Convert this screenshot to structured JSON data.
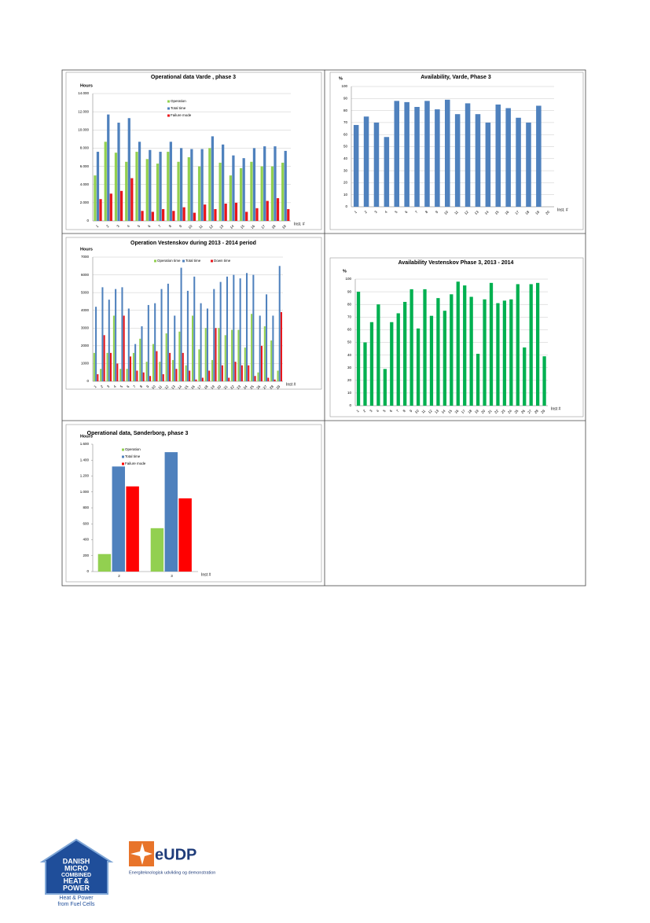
{
  "chart_data": [
    {
      "type": "bar",
      "title": "Operational data Varde , phase 3",
      "y_label": "Hours",
      "x_label": "Inst. #",
      "categories": [
        "1",
        "2",
        "3",
        "4",
        "5",
        "6",
        "7",
        "8",
        "9",
        "10",
        "11",
        "12",
        "13",
        "14",
        "15",
        "16",
        "17",
        "18",
        "19"
      ],
      "series": [
        {
          "name": "Operation",
          "color": "#92d050",
          "values": [
            5000,
            8700,
            7500,
            6500,
            7600,
            6800,
            6300,
            7600,
            6500,
            7000,
            6000,
            8000,
            6400,
            5000,
            5800,
            6500,
            6000,
            6000,
            6400
          ]
        },
        {
          "name": "Total time",
          "color": "#4f81bd",
          "values": [
            7600,
            11700,
            10800,
            11300,
            8700,
            7800,
            7600,
            8700,
            8000,
            7900,
            7900,
            9300,
            8400,
            7200,
            6900,
            8000,
            8200,
            8200,
            7700
          ]
        },
        {
          "name": "Failure mode",
          "color": "#e8161b",
          "values": [
            2400,
            3000,
            3300,
            4700,
            1100,
            1000,
            1300,
            1100,
            1500,
            900,
            1800,
            1300,
            1900,
            2000,
            1000,
            1400,
            2200,
            2500,
            1300
          ]
        }
      ],
      "ylim": [
        0,
        14000
      ],
      "yticks": [
        0,
        {
          "value": 2000,
          "label": "2.000"
        },
        {
          "value": 4000,
          "label": "4.000"
        },
        {
          "value": 6000,
          "label": "6.000"
        },
        {
          "value": 8000,
          "label": "8.000"
        },
        {
          "value": 10000,
          "label": "10.000"
        },
        {
          "value": 12000,
          "label": "12.000"
        },
        {
          "value": 14000,
          "label": "14.000"
        }
      ],
      "grid": true,
      "legend": "vertical"
    },
    {
      "type": "bar",
      "title": "Availability, Varde, Phase 3",
      "y_label": "%",
      "x_label": "Inst. #",
      "categories": [
        "1",
        "2",
        "3",
        "4",
        "5",
        "6",
        "7",
        "8",
        "9",
        "10",
        "11",
        "12",
        "13",
        "14",
        "15",
        "16",
        "17",
        "18",
        "19",
        "20"
      ],
      "series": [
        {
          "name": "Availability",
          "color": "#4f81bd",
          "values": [
            68,
            75,
            70,
            58,
            88,
            87,
            83,
            88,
            81,
            89,
            77,
            86,
            77,
            70,
            85,
            82,
            74,
            70,
            84,
            null
          ]
        }
      ],
      "ylim": [
        0,
        100
      ],
      "yticks": [
        0,
        10,
        20,
        30,
        40,
        50,
        60,
        70,
        80,
        90,
        100
      ],
      "grid": true,
      "legend": "none"
    },
    {
      "type": "bar",
      "title": "Operation   Vestenskov during 2013 - 2014 period",
      "y_label": "Hours",
      "x_label": "Inst #",
      "categories": [
        "1",
        "2",
        "3",
        "4",
        "5",
        "6",
        "7",
        "8",
        "9",
        "10",
        "11",
        "12",
        "13",
        "14",
        "15",
        "16",
        "17",
        "18",
        "19",
        "20",
        "21",
        "22",
        "23",
        "24",
        "25",
        "26",
        "27",
        "28",
        "29"
      ],
      "series": [
        {
          "name": "Operation time",
          "color": "#92d050",
          "values": [
            1600,
            700,
            1600,
            3700,
            700,
            700,
            1600,
            2400,
            1100,
            2100,
            1100,
            2700,
            1200,
            2800,
            900,
            3700,
            1800,
            3000,
            1200,
            3000,
            2600,
            2900,
            2900,
            1900,
            3800,
            500,
            3100,
            2300,
            600
          ]
        },
        {
          "name": "Total time",
          "color": "#4f81bd",
          "values": [
            4200,
            5300,
            4600,
            5200,
            5300,
            4100,
            2100,
            3100,
            4300,
            4400,
            5200,
            5500,
            3700,
            6400,
            5100,
            5900,
            4400,
            4100,
            5200,
            5600,
            5900,
            6000,
            5800,
            6100,
            6000,
            3700,
            4900,
            3700,
            6500
          ]
        },
        {
          "name": "Down time",
          "color": "#e8161b",
          "values": [
            400,
            2600,
            1600,
            1000,
            3700,
            1400,
            600,
            500,
            300,
            1700,
            400,
            1600,
            700,
            1600,
            600,
            100,
            200,
            600,
            3000,
            900,
            200,
            1100,
            900,
            900,
            300,
            2000,
            200,
            100,
            3900
          ]
        }
      ],
      "ylim": [
        0,
        7000
      ],
      "yticks": [
        0,
        1000,
        2000,
        3000,
        4000,
        5000,
        6000,
        7000
      ],
      "grid": true,
      "legend": "horizontal"
    },
    {
      "type": "bar",
      "title": "Availability Vestenskov  Phase 3, 2013 - 2014",
      "y_label": "%",
      "x_label": "Inst #",
      "categories": [
        "1",
        "2",
        "3",
        "4",
        "5",
        "6",
        "7",
        "8",
        "9",
        "10",
        "11",
        "12",
        "13",
        "14",
        "15",
        "16",
        "17",
        "18",
        "19",
        "20",
        "21",
        "22",
        "23",
        "24",
        "25",
        "26",
        "27",
        "28",
        "29"
      ],
      "series": [
        {
          "name": "Availability",
          "color": "#00b050",
          "values": [
            90,
            50,
            66,
            80,
            29,
            66,
            73,
            82,
            92,
            61,
            92,
            71,
            85,
            75,
            88,
            98,
            95,
            86,
            41,
            84,
            97,
            81,
            83,
            84,
            96,
            46,
            96,
            97,
            39
          ]
        }
      ],
      "ylim": [
        0,
        100
      ],
      "yticks": [
        0,
        10,
        20,
        30,
        40,
        50,
        60,
        70,
        80,
        90,
        100
      ],
      "grid": true,
      "legend": "none"
    },
    {
      "type": "bar",
      "title": "Operational data, Sønderborg, phase 3",
      "y_label": "Hours",
      "x_label": "Inst #",
      "categories": [
        "2",
        "3"
      ],
      "series": [
        {
          "name": "Operation",
          "color": "#92d050",
          "values": [
            220,
            545
          ]
        },
        {
          "name": "Total time",
          "color": "#4f81bd",
          "values": [
            1320,
            1500
          ]
        },
        {
          "name": "Failure mode",
          "color": "#ff0000",
          "values": [
            1070,
            920
          ]
        }
      ],
      "ylim": [
        0,
        1600
      ],
      "yticks": [
        0,
        200,
        400,
        600,
        800,
        {
          "value": 1000,
          "label": "1.000"
        },
        {
          "value": 1200,
          "label": "1.200"
        },
        {
          "value": 1400,
          "label": "1.400"
        },
        {
          "value": 1600,
          "label": "1.600"
        }
      ],
      "grid": false,
      "legend": "vertical"
    }
  ],
  "logos": {
    "dmchp": {
      "lines": [
        "DANISH",
        "MICRO",
        "COMBINED",
        "HEAT &",
        "POWER"
      ],
      "tagline": [
        "Heat & Power",
        "from Fuel Cells"
      ]
    },
    "eudp": {
      "name": "eUDP",
      "tagline": "Energiteknologisk udvikling og demonstration"
    }
  }
}
